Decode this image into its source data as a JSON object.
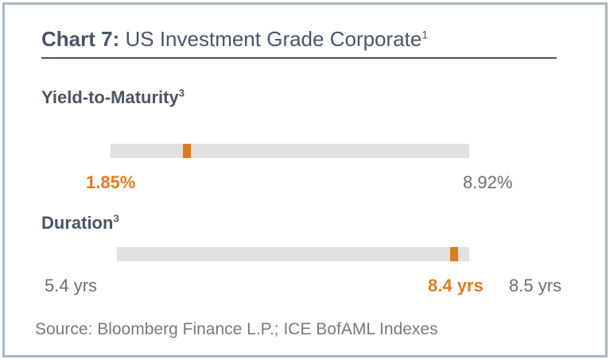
{
  "chart_data": [
    {
      "type": "bar",
      "title": "Chart 7: US Investment Grade Corporate",
      "title_prefix": "Chart 7:",
      "title_main": "US Investment Grade Corporate",
      "title_footnote": "1",
      "metric": "Yield-to-Maturity",
      "metric_footnote": "3",
      "current": 1.85,
      "current_label": "1.85%",
      "range": [
        0,
        8.92
      ],
      "max_label": "8.92%",
      "unit": "%"
    },
    {
      "type": "bar",
      "metric": "Duration",
      "metric_footnote": "3",
      "current": 8.4,
      "current_label": "8.4 yrs",
      "range": [
        5.4,
        8.5
      ],
      "min_label": "5.4 yrs",
      "max_label": "8.5 yrs",
      "unit": "yrs"
    }
  ],
  "source": "Source: Bloomberg Finance L.P.; ICE BofAML Indexes",
  "colors": {
    "accent": "#e07b20",
    "title": "#4a5566",
    "track": "#e1e1e1",
    "border": "#a8b8c4",
    "muted": "#6e6e6e"
  }
}
